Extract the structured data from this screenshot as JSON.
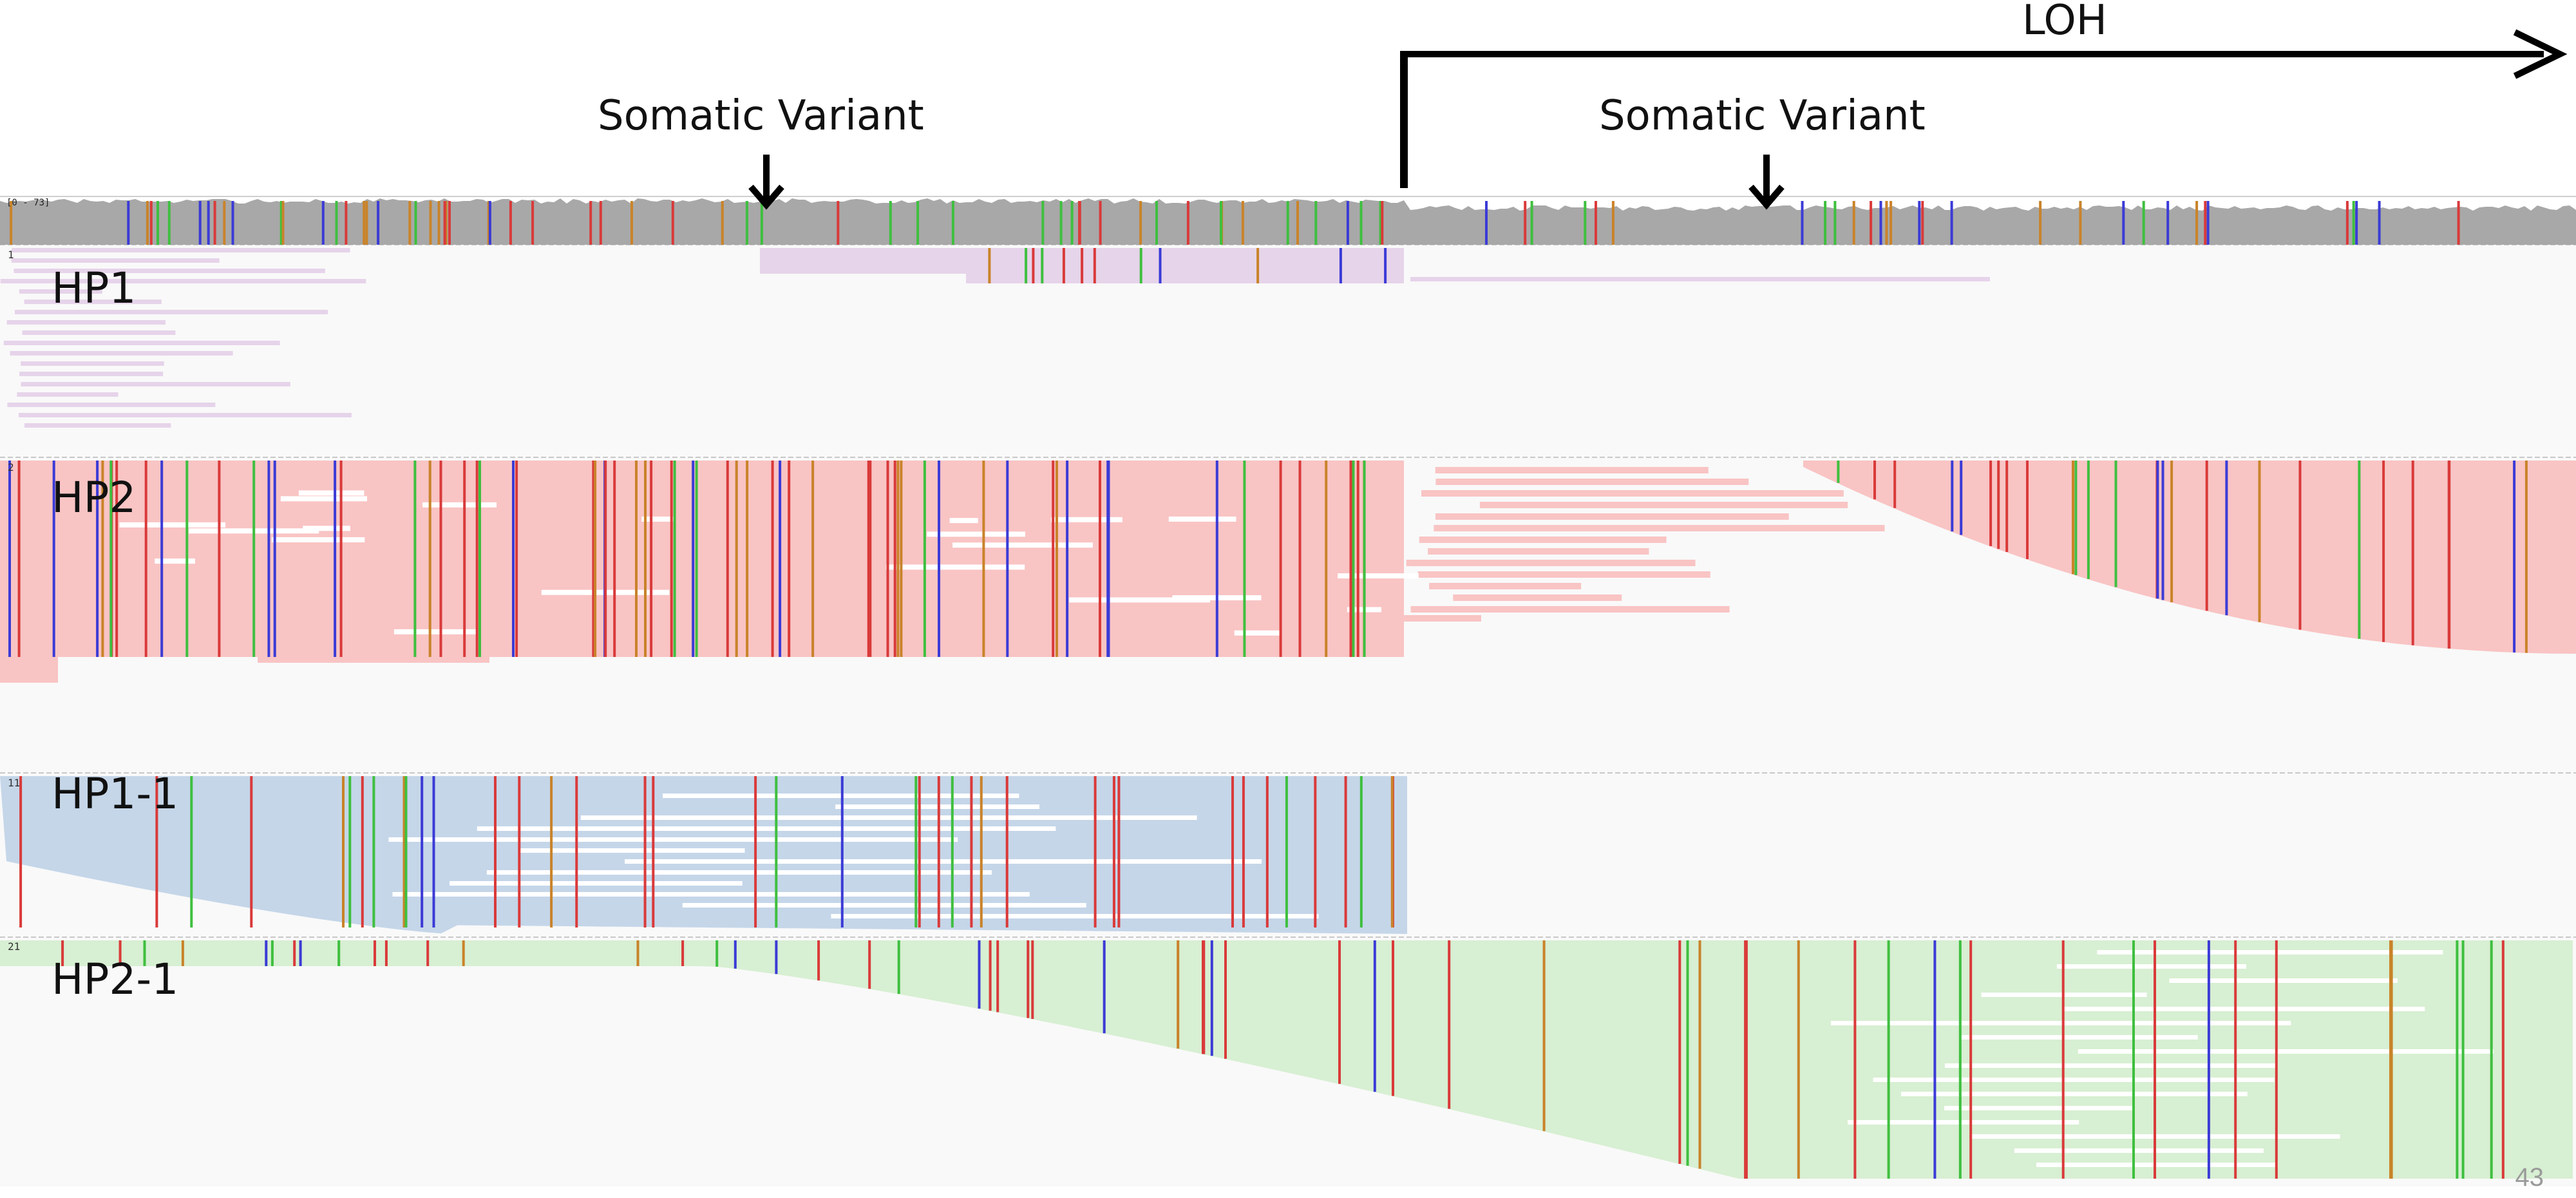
{
  "annotations": {
    "loh_label": "LOH",
    "somatic_variant_left": "Somatic Variant",
    "somatic_variant_right": "Somatic Variant"
  },
  "coverage": {
    "range_label": "[0 - 73]"
  },
  "tracks": [
    {
      "id": "hp1",
      "label": "HP1",
      "number": "1",
      "read_color": "#e6d4ea"
    },
    {
      "id": "hp2",
      "label": "HP2",
      "number": "2",
      "read_color": "#f9c4c4"
    },
    {
      "id": "hp1-1",
      "label": "HP1-1",
      "number": "11",
      "read_color": "#c5d6e9"
    },
    {
      "id": "hp2-1",
      "label": "HP2-1",
      "number": "21",
      "read_color": "#d7efd2"
    }
  ],
  "colors": {
    "coverage_gray": "#a8a8a8",
    "background": "#f9f9f9",
    "mismatch_red": "#d93a3a",
    "mismatch_green": "#3fbf3f",
    "mismatch_blue": "#3b3bd6",
    "mismatch_orange": "#c9832a",
    "arrow": "#000000"
  },
  "slide": {
    "page_number": "43"
  }
}
